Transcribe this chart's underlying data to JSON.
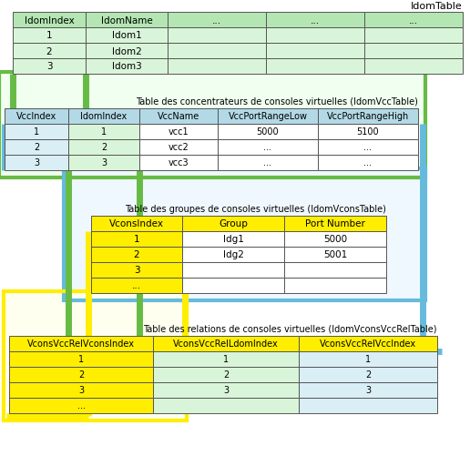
{
  "title_idom": "IdomTable",
  "title_vcc": "Table des concentrateurs de consoles virtuelles (IdomVccTable)",
  "title_vcons": "Table des groupes de consoles virtuelles (IdomVconsTable)",
  "title_rel": "Table des relations de consoles virtuelles (IdomVconsVccRelTable)",
  "idom_headers": [
    "IdomIndex",
    "IdomName",
    "...",
    "...",
    "..."
  ],
  "idom_rows": [
    [
      "1",
      "ldom1",
      "",
      "",
      ""
    ],
    [
      "2",
      "ldom2",
      "",
      "",
      ""
    ],
    [
      "3",
      "ldom3",
      "",
      "",
      ""
    ]
  ],
  "idom_header_color": "#b3e6b3",
  "idom_row_color": "#d9f5d9",
  "vcc_headers": [
    "VccIndex",
    "IdomIndex",
    "VccName",
    "VccPortRangeLow",
    "VccPortRangeHigh"
  ],
  "vcc_rows": [
    [
      "1",
      "1",
      "vcc1",
      "5000",
      "5100"
    ],
    [
      "2",
      "2",
      "vcc2",
      "...",
      "..."
    ],
    [
      "3",
      "3",
      "vcc3",
      "...",
      "..."
    ]
  ],
  "vcc_header_color": "#b3d9e6",
  "vcc_col1_color": "#d9eef5",
  "vcc_col2_color": "#d9f5d9",
  "vcc_other_color": "#ffffff",
  "vcons_headers": [
    "VconsIndex",
    "Group",
    "Port Number"
  ],
  "vcons_rows": [
    [
      "1",
      "ldg1",
      "5000"
    ],
    [
      "2",
      "ldg2",
      "5001"
    ],
    [
      "3",
      "",
      ""
    ],
    [
      "...",
      "",
      ""
    ]
  ],
  "vcons_header_color": "#ffee00",
  "vcons_col1_color": "#ffee00",
  "vcons_other_color": "#ffffff",
  "rel_headers": [
    "VconsVccRelVconsIndex",
    "VconsVccRelLdomIndex",
    "VconsVccRelVccIndex"
  ],
  "rel_rows": [
    [
      "1",
      "1",
      "1"
    ],
    [
      "2",
      "2",
      "2"
    ],
    [
      "3",
      "3",
      "3"
    ],
    [
      "...",
      "",
      ""
    ]
  ],
  "rel_header_color": "#ffee00",
  "rel_col1_color": "#ffee00",
  "rel_col2_color": "#d9f5d9",
  "rel_col3_color": "#d9eef5",
  "green": "#66bb44",
  "yellow": "#ffee00",
  "blue": "#66bbdd",
  "green_bg": "#f0fff0",
  "yellow_bg": "#fffff0",
  "blue_bg": "#f0f8ff",
  "bg_color": "#ffffff",
  "text_color": "#000000",
  "border_color": "#555555"
}
